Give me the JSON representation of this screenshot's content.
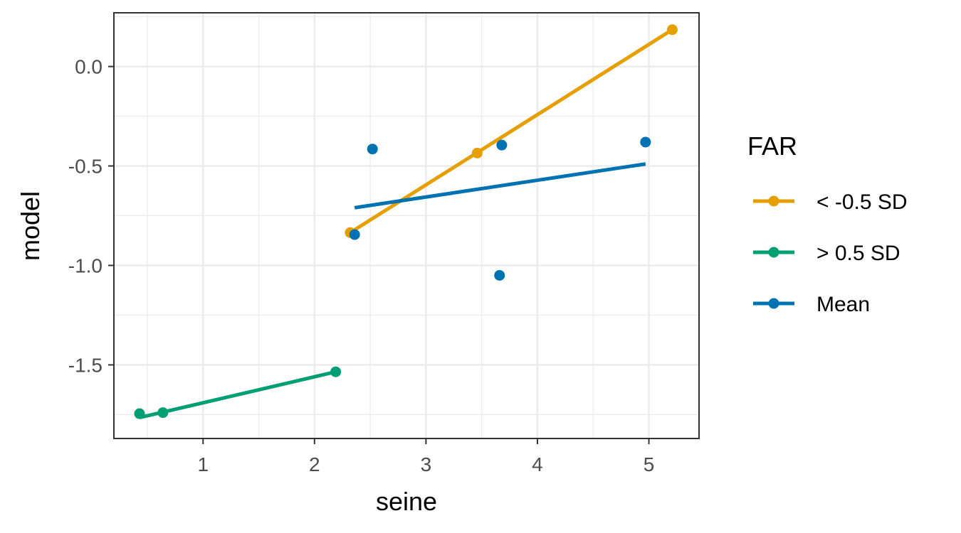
{
  "chart_data": {
    "type": "scatter",
    "xlabel": "seine",
    "ylabel": "model",
    "xlim": [
      0.2,
      5.45
    ],
    "ylim": [
      -1.87,
      0.27
    ],
    "x_ticks": [
      1,
      2,
      3,
      4,
      5
    ],
    "x_tick_labels": [
      "1",
      "2",
      "3",
      "4",
      "5"
    ],
    "y_ticks": [
      0.0,
      -0.5,
      -1.0,
      -1.5
    ],
    "y_tick_labels": [
      "0.0",
      "-0.5",
      "-1.0",
      "-1.5"
    ],
    "x_minor_ticks": [
      0.5,
      1.5,
      2.5,
      3.5,
      4.5
    ],
    "y_minor_ticks": [
      0.25,
      -0.25,
      -0.75,
      -1.25,
      -1.75
    ],
    "grid": true,
    "legend": {
      "title": "FAR",
      "position": "right",
      "entries": [
        "< -0.5 SD",
        "> 0.5 SD",
        "Mean"
      ]
    },
    "series": [
      {
        "name": "< -0.5 SD",
        "color": "#E69F00",
        "points": [
          [
            2.32,
            -0.835
          ],
          [
            3.46,
            -0.435
          ],
          [
            5.21,
            0.185
          ]
        ],
        "fit": [
          [
            2.32,
            -0.835
          ],
          [
            5.21,
            0.185
          ]
        ]
      },
      {
        "name": "> 0.5 SD",
        "color": "#009E73",
        "points": [
          [
            0.43,
            -1.745
          ],
          [
            0.64,
            -1.74
          ],
          [
            2.19,
            -1.535
          ]
        ],
        "fit": [
          [
            0.43,
            -1.765
          ],
          [
            2.19,
            -1.535
          ]
        ]
      },
      {
        "name": "Mean",
        "color": "#0072B2",
        "points": [
          [
            2.36,
            -0.845
          ],
          [
            2.52,
            -0.415
          ],
          [
            3.66,
            -1.05
          ],
          [
            3.68,
            -0.395
          ],
          [
            4.97,
            -0.38
          ]
        ],
        "fit": [
          [
            2.36,
            -0.71
          ],
          [
            4.97,
            -0.49
          ]
        ]
      }
    ]
  }
}
